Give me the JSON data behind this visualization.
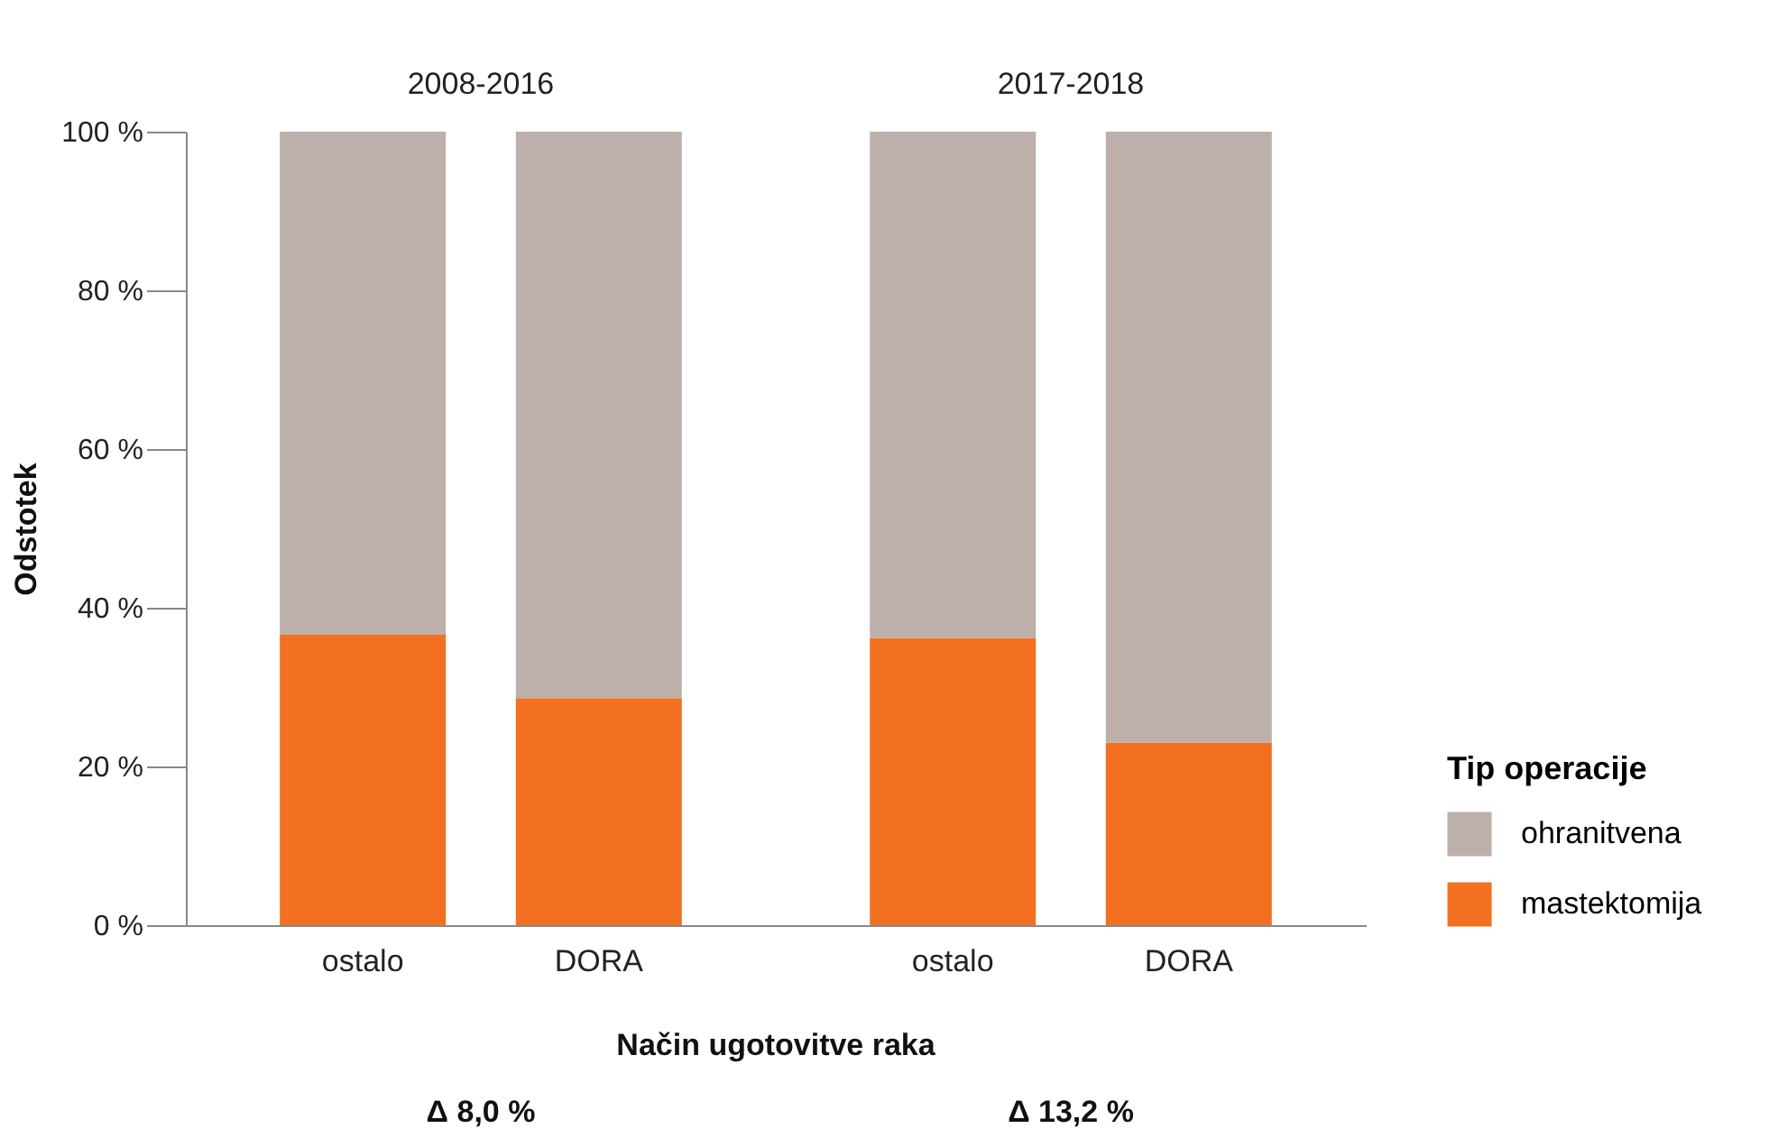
{
  "chart_data": [
    {
      "type": "bar",
      "title": "2008-2016",
      "categories": [
        "ostalo",
        "DORA"
      ],
      "stacked": true,
      "ylabel": "Odstotek",
      "xlabel": "Način ugotovitve raka",
      "ylim": [
        0,
        100
      ],
      "yticks": [
        {
          "value": 0,
          "label": "0 %"
        },
        {
          "value": 20,
          "label": "20 %"
        },
        {
          "value": 40,
          "label": "40 %"
        },
        {
          "value": 60,
          "label": "60 %"
        },
        {
          "value": 80,
          "label": "80 %"
        },
        {
          "value": 100,
          "label": "100 %"
        }
      ],
      "series": [
        {
          "color": "#f37021",
          "values": [
            36.6,
            28.6
          ]
        },
        {
          "color": "#bdb0ab",
          "values": [
            63.4,
            71.4
          ]
        }
      ],
      "grid": false,
      "annotations": [
        "Δ 8,0 %"
      ]
    },
    {
      "type": "bar",
      "title": "2017-2018",
      "categories": [
        "ostalo",
        "DORA"
      ],
      "stacked": true,
      "ylim": [
        0,
        100
      ],
      "tick_labels": "x",
      "series": [
        {
          "name": "mastektomija",
          "color": "#f37021",
          "values": [
            36.2,
            23.0
          ]
        },
        {
          "name": "ohranitvena",
          "color": "#bdb0ab",
          "values": [
            63.8,
            77.0
          ]
        }
      ],
      "grid": false,
      "legend": "right",
      "legend_title": "Tip operacije",
      "annotations": [
        "Δ 13,2 %"
      ]
    }
  ]
}
